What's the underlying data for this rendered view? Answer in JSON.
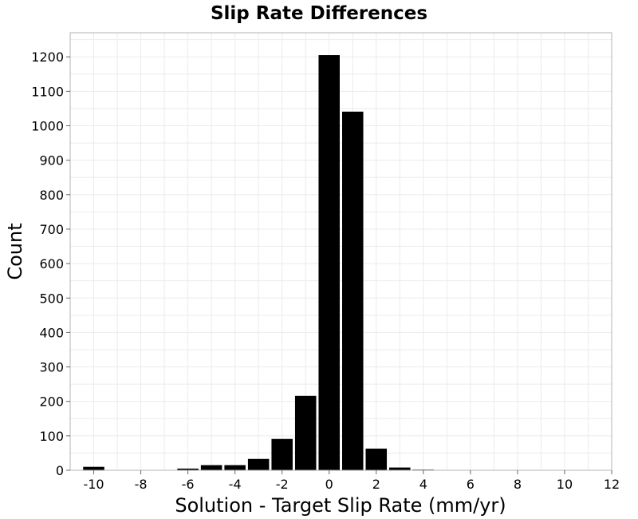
{
  "chart_data": {
    "type": "bar",
    "title": "Slip Rate Differences",
    "xlabel": "Solution - Target Slip Rate (mm/yr)",
    "ylabel": "Count",
    "xlim": [
      -11,
      12
    ],
    "ylim": [
      0,
      1270
    ],
    "x_ticks": [
      -10,
      -8,
      -6,
      -4,
      -2,
      0,
      2,
      4,
      6,
      8,
      10,
      12
    ],
    "y_ticks": [
      0,
      100,
      200,
      300,
      400,
      500,
      600,
      700,
      800,
      900,
      1000,
      1100,
      1200
    ],
    "bin_width": 1,
    "x": [
      -10,
      -9,
      -8,
      -7,
      -6,
      -5,
      -4,
      -3,
      -2,
      -1,
      0,
      1,
      2,
      3,
      4,
      5,
      6,
      7,
      8,
      9,
      10,
      11
    ],
    "values": [
      10,
      0,
      1,
      0,
      5,
      15,
      15,
      33,
      91,
      216,
      1205,
      1041,
      63,
      8,
      2,
      0,
      1,
      1,
      0,
      0,
      0,
      0
    ],
    "grid": true,
    "bar_color": "#000000",
    "grid_color": "#ebebeb"
  }
}
